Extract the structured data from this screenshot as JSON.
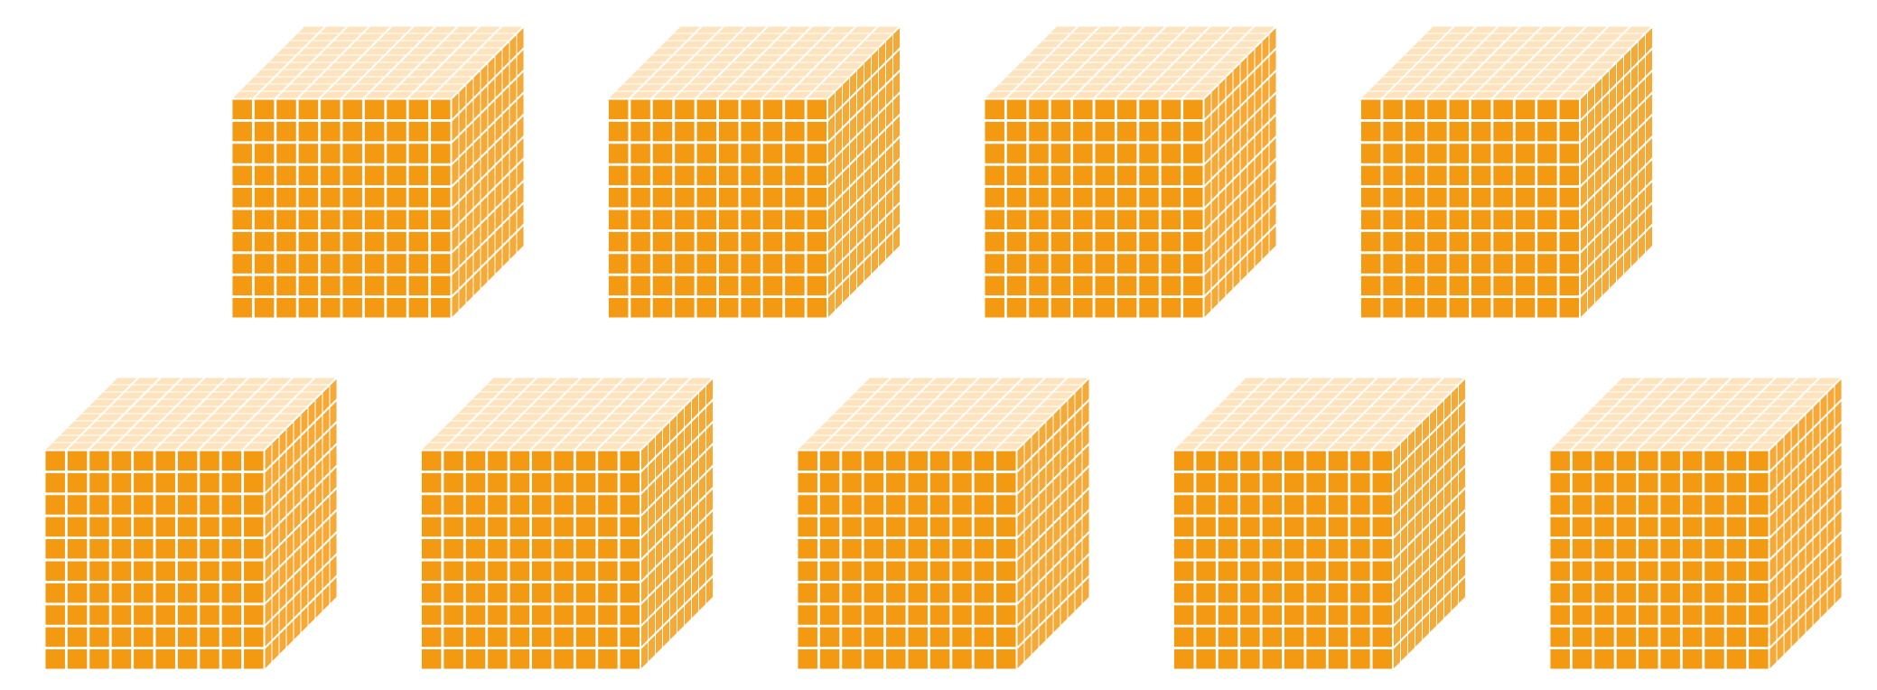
{
  "rows": [
    {
      "cubes": 4
    },
    {
      "cubes": 5
    }
  ]
}
